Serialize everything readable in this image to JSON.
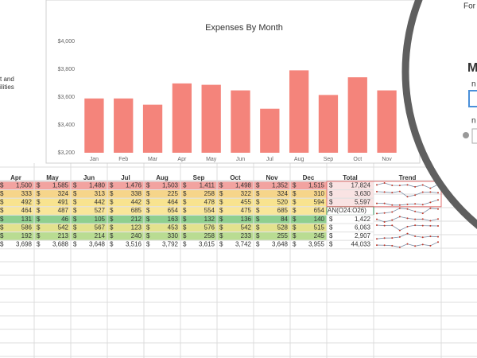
{
  "chart_data": {
    "type": "bar",
    "title": "Expenses By Month",
    "categories": [
      "Jan",
      "Feb",
      "Mar",
      "Apr",
      "May",
      "Jun",
      "Jul",
      "Aug",
      "Sep",
      "Oct",
      "Nov"
    ],
    "values": [
      3590,
      3590,
      3545,
      3698,
      3688,
      3648,
      3516,
      3792,
      3615,
      3742,
      3648
    ],
    "color": "#f4847b",
    "ylim": [
      3200,
      4000
    ],
    "yticks": [
      {
        "value": 3200,
        "label": "$3,200"
      },
      {
        "value": 3400,
        "label": "$3,400"
      },
      {
        "value": 3600,
        "label": "$3,600"
      },
      {
        "value": 3800,
        "label": "$3,800"
      },
      {
        "value": 4000,
        "label": "$4,000"
      }
    ],
    "grid": false
  },
  "side_text": [
    "t and",
    "ilities"
  ],
  "panel": {
    "title": "For",
    "heading": "M",
    "label1": "n",
    "label2": "n"
  },
  "table": {
    "header": [
      "Apr",
      "May",
      "Jun",
      "Jul",
      "Aug",
      "Sep",
      "Oct",
      "Nov",
      "Dec",
      "Total",
      "Trend"
    ],
    "currency": "$",
    "rows": [
      {
        "color": "#f2a3a0",
        "cells": [
          "1,500",
          "1,585",
          "1,480",
          "1,476",
          "1,503",
          "1,411",
          "1,498",
          "1,352",
          "1,515"
        ],
        "total": "17,824"
      },
      {
        "color": "#f6d58a",
        "cells": [
          "333",
          "324",
          "313",
          "338",
          "225",
          "258",
          "322",
          "324",
          "310"
        ],
        "total": "3,630"
      },
      {
        "color": "#f8e38f",
        "cells": [
          "492",
          "491",
          "442",
          "442",
          "464",
          "478",
          "455",
          "520",
          "594"
        ],
        "total": "5,597"
      },
      {
        "color": "#f9e69a",
        "cells": [
          "464",
          "487",
          "527",
          "685",
          "654",
          "554",
          "475",
          "685",
          "654"
        ],
        "total": "AN(O24:O26)"
      },
      {
        "color": "#8fcf8f",
        "cells": [
          "131",
          "46",
          "105",
          "212",
          "163",
          "132",
          "136",
          "84",
          "140"
        ],
        "total": "1,422"
      },
      {
        "color": "#e3e28e",
        "cells": [
          "586",
          "542",
          "567",
          "123",
          "453",
          "576",
          "542",
          "528",
          "515"
        ],
        "total": "6,063"
      },
      {
        "color": "#b9dc92",
        "cells": [
          "192",
          "213",
          "214",
          "240",
          "330",
          "258",
          "233",
          "255",
          "245"
        ],
        "total": "2,907"
      },
      {
        "color": "#ffffff",
        "cells": [
          "3,698",
          "3,688",
          "3,648",
          "3,516",
          "3,792",
          "3,615",
          "3,742",
          "3,648",
          "3,955"
        ],
        "total": "44,033"
      }
    ]
  }
}
